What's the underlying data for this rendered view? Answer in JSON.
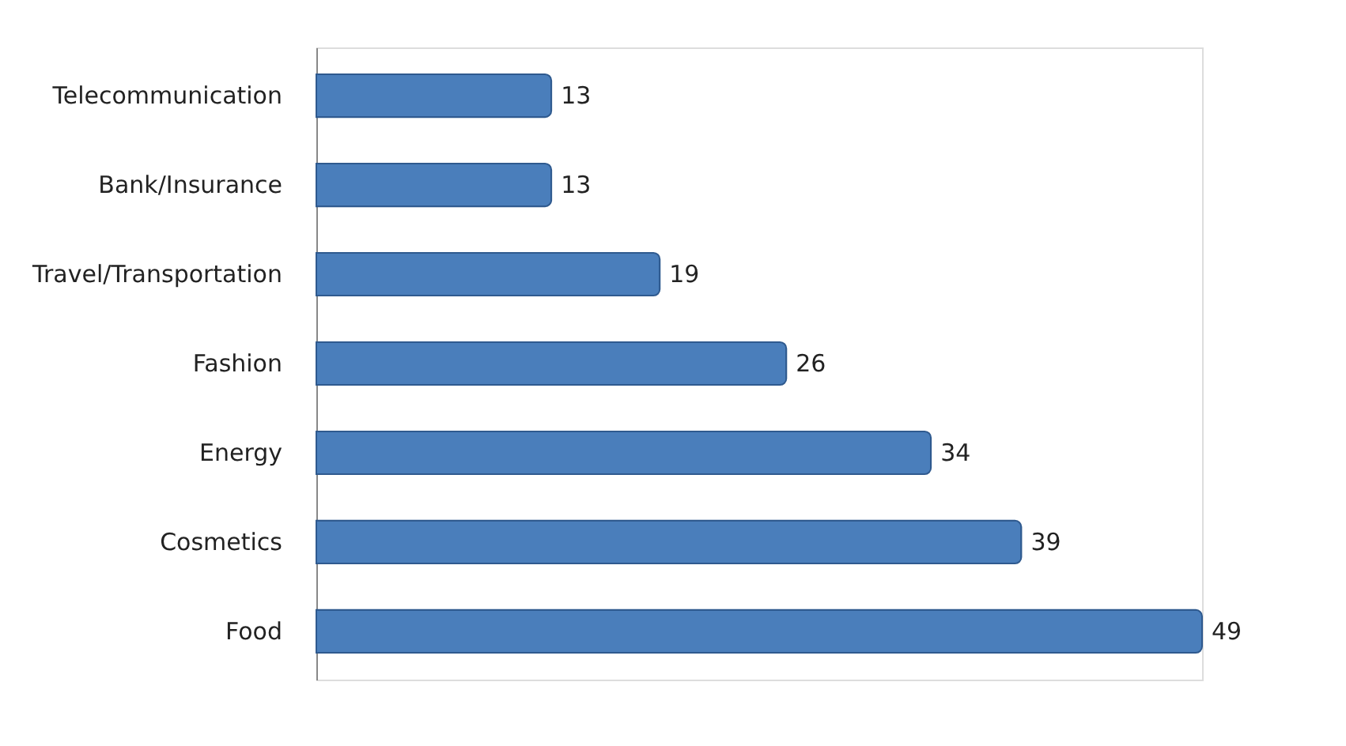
{
  "chart_data": {
    "type": "bar",
    "orientation": "horizontal",
    "categories": [
      "Telecommunication",
      "Bank/Insurance",
      "Travel/Transportation",
      "Fashion",
      "Energy",
      "Cosmetics",
      "Food"
    ],
    "values": [
      13,
      13,
      19,
      26,
      34,
      39,
      49
    ],
    "color": "#4a7ebb",
    "data_labels": true,
    "grid": false
  }
}
